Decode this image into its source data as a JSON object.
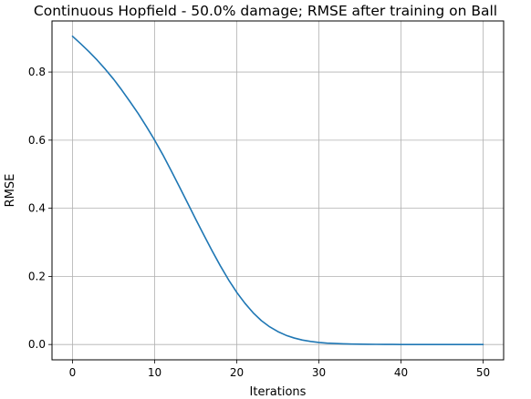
{
  "chart_data": {
    "type": "line",
    "title": "Continuous Hopfield - 50.0% damage; RMSE after training on Ball",
    "xlabel": "Iterations",
    "ylabel": "RMSE",
    "xlim": [
      -2.5,
      52.5
    ],
    "ylim": [
      -0.045,
      0.95
    ],
    "xticks": [
      0,
      10,
      20,
      30,
      40,
      50
    ],
    "xtick_labels": [
      "0",
      "10",
      "20",
      "30",
      "40",
      "50"
    ],
    "yticks": [
      0.0,
      0.2,
      0.4,
      0.6,
      0.8
    ],
    "ytick_labels": [
      "0.0",
      "0.2",
      "0.4",
      "0.6",
      "0.8"
    ],
    "grid": true,
    "line_color": "#1f77b4",
    "series": [
      {
        "x": [
          0,
          1,
          2,
          3,
          4,
          5,
          6,
          7,
          8,
          9,
          10,
          11,
          12,
          13,
          14,
          15,
          16,
          17,
          18,
          19,
          20,
          21,
          22,
          23,
          24,
          25,
          26,
          27,
          28,
          29,
          30,
          31,
          32,
          33,
          34,
          35,
          36,
          37,
          38,
          39,
          40,
          41,
          42,
          43,
          44,
          45,
          46,
          47,
          48,
          49,
          50
        ],
        "values": [
          0.905,
          0.883,
          0.86,
          0.835,
          0.808,
          0.779,
          0.747,
          0.713,
          0.678,
          0.64,
          0.6,
          0.557,
          0.511,
          0.464,
          0.416,
          0.368,
          0.321,
          0.275,
          0.231,
          0.19,
          0.153,
          0.121,
          0.093,
          0.07,
          0.052,
          0.038,
          0.027,
          0.019,
          0.013,
          0.009,
          0.006,
          0.004,
          0.003,
          0.002,
          0.0014,
          0.001,
          0.0007,
          0.0005,
          0.0003,
          0.0002,
          0.0001,
          0.0001,
          0.0001,
          0.0,
          0.0,
          0.0,
          0.0,
          0.0,
          0.0,
          0.0,
          0.0
        ]
      }
    ]
  }
}
